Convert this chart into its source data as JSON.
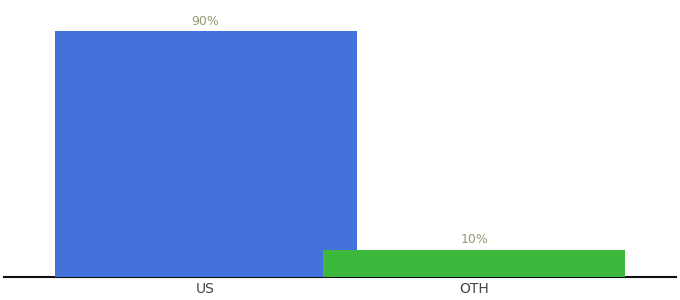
{
  "categories": [
    "US",
    "OTH"
  ],
  "values": [
    90,
    10
  ],
  "bar_colors": [
    "#4472DB",
    "#3CB83C"
  ],
  "label_texts": [
    "90%",
    "10%"
  ],
  "background_color": "#ffffff",
  "ylim": [
    0,
    100
  ],
  "bar_width": 0.45,
  "label_fontsize": 9,
  "tick_fontsize": 10,
  "label_color": "#999977",
  "tick_color": "#444444",
  "axis_line_color": "#111111",
  "x_positions": [
    0.35,
    0.75
  ]
}
